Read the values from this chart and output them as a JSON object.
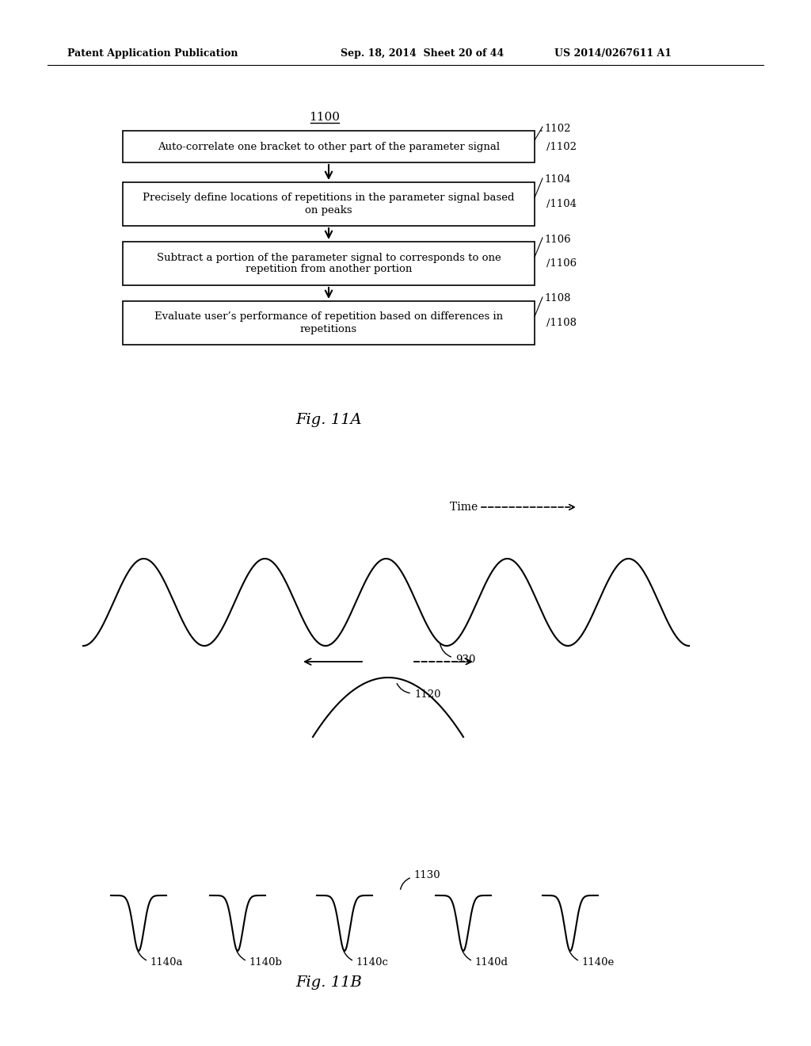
{
  "bg_color": "#ffffff",
  "header_left": "Patent Application Publication",
  "header_mid": "Sep. 18, 2014  Sheet 20 of 44",
  "header_right": "US 2014/0267611 A1",
  "fig_title_A": "Fig. 11A",
  "fig_title_B": "Fig. 11B",
  "flow_label": "1100",
  "flow_boxes": [
    {
      "label": "1102",
      "text": "Auto-correlate one bracket to other part of the parameter signal"
    },
    {
      "label": "1104",
      "text": "Precisely define locations of repetitions in the parameter signal based\non peaks"
    },
    {
      "label": "1106",
      "text": "Subtract a portion of the parameter signal to corresponds to one\nrepetition from another portion"
    },
    {
      "label": "1108",
      "text": "Evaluate user’s performance of repetition based on differences in\nrepetitions"
    }
  ],
  "wave930_label": "930",
  "bracket_label": "1120",
  "bottom_labels": [
    "1140a",
    "1140b",
    "1140c",
    "1140d",
    "1140e"
  ],
  "bottom_valley_label": "1130",
  "time_label": "Time"
}
